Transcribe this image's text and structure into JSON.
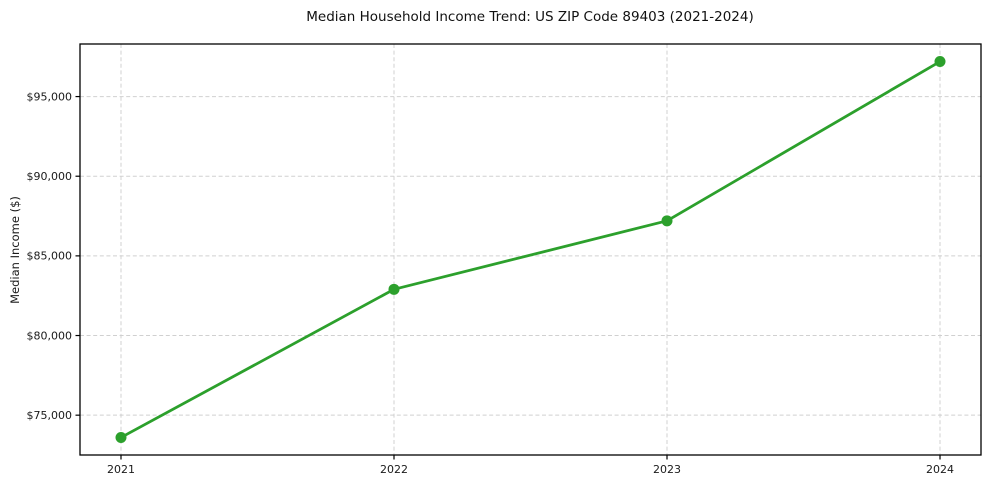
{
  "chart_data": {
    "type": "line",
    "title": "Median Household Income Trend: US ZIP Code 89403 (2021-2024)",
    "xlabel": "",
    "ylabel": "Median Income ($)",
    "categories": [
      "2021",
      "2022",
      "2023",
      "2024"
    ],
    "values": [
      73600,
      82900,
      87200,
      97200
    ],
    "ylim": [
      72500,
      98300
    ],
    "yticks": [
      75000,
      80000,
      85000,
      90000,
      95000
    ],
    "ytick_labels": [
      "$75,000",
      "$80,000",
      "$85,000",
      "$90,000",
      "$95,000"
    ],
    "grid": true,
    "legend_position": "none",
    "line_color": "#2ca02c",
    "marker": "circle",
    "grid_color": "#d0d0d0",
    "axis_color": "#000000",
    "background_color": "#ffffff"
  }
}
